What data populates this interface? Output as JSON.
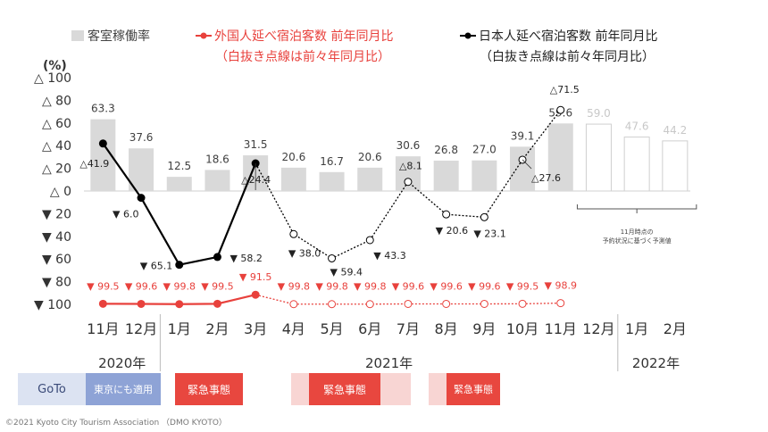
{
  "chart_data": {
    "type": "bar+line",
    "unit_label": "(%)",
    "y_ticks": [
      "△ 100",
      "△ 80",
      "△ 60",
      "△ 40",
      "△ 20",
      "△ 0",
      "▼ 20",
      "▼ 40",
      "▼ 60",
      "▼ 80",
      "▼ 100"
    ],
    "ylim": [
      -100,
      100
    ],
    "categories": [
      "11月",
      "12月",
      "1月",
      "2月",
      "3月",
      "4月",
      "5月",
      "6月",
      "7月",
      "8月",
      "9月",
      "10月",
      "11月",
      "12月",
      "1月",
      "2月"
    ],
    "year_labels": [
      "2020年",
      "2021年",
      "2022年"
    ],
    "legend": {
      "occupancy": "客室稼働率",
      "foreign_line1": "外国人延べ宿泊客数  前年同月比",
      "foreign_line2": "（白抜き点線は前々年同月比）",
      "japanese_line1": "日本人延べ宿泊客数  前年同月比",
      "japanese_line2": "（白抜き点線は前々年同月比）"
    },
    "series": [
      {
        "name": "客室稼働率",
        "type": "bar",
        "values": [
          63.3,
          37.6,
          12.5,
          18.6,
          31.5,
          20.6,
          16.7,
          20.6,
          30.6,
          26.8,
          27.0,
          39.1,
          59.6,
          59.0,
          47.6,
          44.2
        ],
        "labels": [
          "63.3",
          "37.6",
          "12.5",
          "18.6",
          "31.5",
          "20.6",
          "16.7",
          "20.6",
          "30.6",
          "26.8",
          "27.0",
          "39.1",
          "59.6",
          "59.0",
          "47.6",
          "44.2"
        ],
        "forecast_from_index": 13,
        "forecast_note_line1": "11月時点の",
        "forecast_note_line2": "予約状況に基づく予測値"
      },
      {
        "name": "外国人延べ宿泊客数 前年同月比",
        "type": "line",
        "color": "#e8413c",
        "solid_values": [
          -99.5,
          -99.6,
          -99.8,
          -99.5,
          -91.5
        ],
        "solid_labels": [
          "▼ 99.5",
          "▼ 99.6",
          "▼ 99.8",
          "▼ 99.5",
          "▼ 91.5"
        ],
        "dotted_values": [
          -91.5,
          -99.8,
          -99.8,
          -99.8,
          -99.6,
          -99.6,
          -99.6,
          -99.5,
          -98.9
        ],
        "dotted_labels": [
          "▼ 99.8",
          "▼ 99.8",
          "▼ 99.8",
          "▼ 99.6",
          "▼ 99.6",
          "▼ 99.6",
          "▼ 99.5",
          "▼ 98.9"
        ]
      },
      {
        "name": "日本人延べ宿泊客数 前年同月比",
        "type": "line",
        "color": "#000000",
        "solid_values": [
          41.9,
          -6.0,
          -65.1,
          -58.2,
          24.4
        ],
        "solid_labels": [
          "△41.9",
          "▼ 6.0",
          "▼ 65.1",
          "▼ 58.2",
          "△24.4"
        ],
        "dotted_values": [
          24.4,
          -38.0,
          -59.4,
          -43.3,
          8.1,
          -20.6,
          -23.1,
          27.6,
          71.5
        ],
        "dotted_labels": [
          "▼ 38.0",
          "▼ 59.4",
          "▼ 43.3",
          "△8.1",
          "▼ 20.6",
          "▼ 23.1",
          "△27.6",
          "△71.5"
        ]
      }
    ]
  },
  "periods": {
    "goto": "GoTo",
    "tokyo": "東京にも適用",
    "emergency1": "緊急事態",
    "emergency2": "緊急事態",
    "emergency3": "緊急事態"
  },
  "colors": {
    "bar": "#d9d9d9",
    "bar_label": "#404040",
    "forecast_label": "#c8c8c8",
    "foreign": "#e8413c",
    "japanese": "#000000",
    "goto_light": "#dce3f2",
    "goto_dark": "#8ea3d6",
    "emergency": "#e8473f",
    "emergency_light": "#f8d5d3"
  },
  "copyright": "©2021 Kyoto City Tourism Association （DMO KYOTO）"
}
